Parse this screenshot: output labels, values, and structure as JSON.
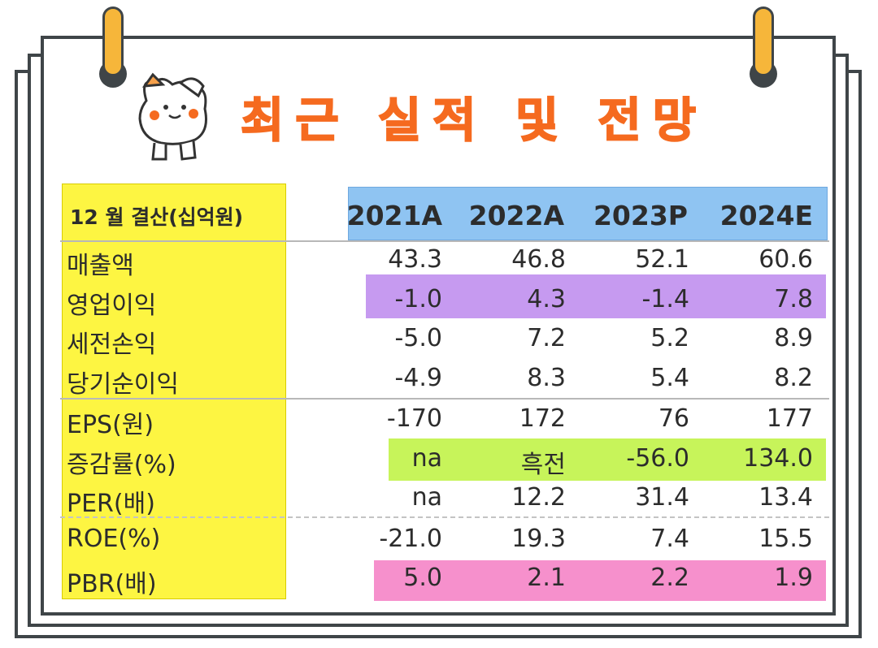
{
  "title": "최근 실적 및 전망",
  "chart_data": {
    "type": "table",
    "header_label": "12 월 결산(십억원)",
    "columns": [
      "2021A",
      "2022A",
      "2023P",
      "2024E"
    ],
    "rows": [
      {
        "label": "매출액",
        "values": [
          "43.3",
          "46.8",
          "52.1",
          "60.6"
        ]
      },
      {
        "label": "영업이익",
        "values": [
          "-1.0",
          "4.3",
          "-1.4",
          "7.8"
        ]
      },
      {
        "label": "세전손익",
        "values": [
          "-5.0",
          "7.2",
          "5.2",
          "8.9"
        ]
      },
      {
        "label": "당기순이익",
        "values": [
          "-4.9",
          "8.3",
          "5.4",
          "8.2"
        ]
      },
      {
        "label": "EPS(원)",
        "values": [
          "-170",
          "172",
          "76",
          "177"
        ]
      },
      {
        "label": "증감률(%)",
        "values": [
          "na",
          "흑전",
          "-56.0",
          "134.0"
        ]
      },
      {
        "label": "PER(배)",
        "values": [
          "na",
          "12.2",
          "31.4",
          "13.4"
        ]
      },
      {
        "label": "ROE(%)",
        "values": [
          "-21.0",
          "19.3",
          "7.4",
          "15.5"
        ]
      },
      {
        "label": "PBR(배)",
        "values": [
          "5.0",
          "2.1",
          "2.2",
          "1.9"
        ]
      }
    ]
  },
  "colors": {
    "title": "#f56a1f",
    "label_column": "#fdf542",
    "header_row": "#8fc4f2",
    "operating_profit_row": "#c69af0",
    "growth_rate_row": "#c7f45a",
    "pbr_row": "#f690cc",
    "clip": "#f6b63a",
    "frame": "#3f4548"
  },
  "icons": {
    "mascot": "cat-mascot-saluting-icon"
  }
}
